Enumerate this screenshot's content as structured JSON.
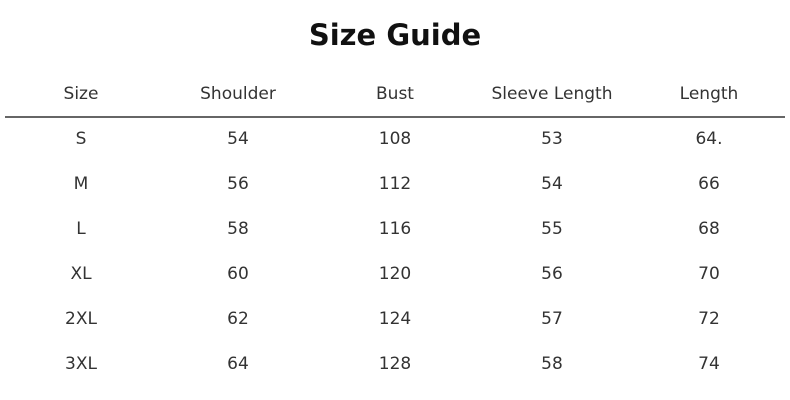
{
  "title": "Size Guide",
  "headers": [
    "Size",
    "Shoulder",
    "Bust",
    "Sleeve Length",
    "Length"
  ],
  "rows": [
    [
      "S",
      "54",
      "108",
      "53",
      "64."
    ],
    [
      "M",
      "56",
      "112",
      "54",
      "66"
    ],
    [
      "L",
      "58",
      "116",
      "55",
      "68"
    ],
    [
      "XL",
      "60",
      "120",
      "56",
      "70"
    ],
    [
      "2XL",
      "62",
      "124",
      "57",
      "72"
    ],
    [
      "3XL",
      "64",
      "128",
      "58",
      "74"
    ]
  ]
}
